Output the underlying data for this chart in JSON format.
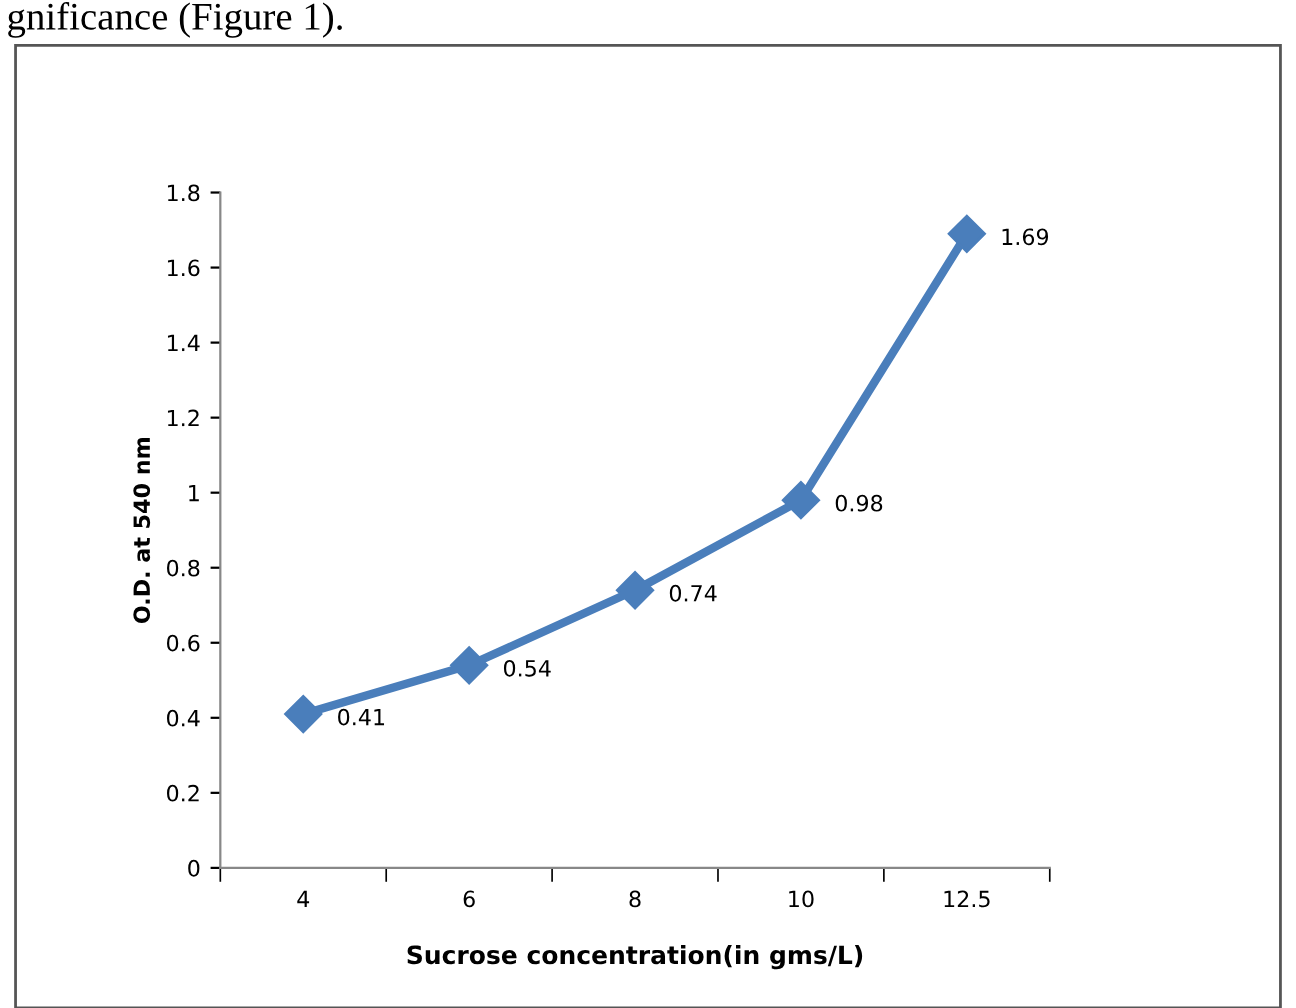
{
  "chart_data": {
    "type": "line",
    "xlabel": "Sucrose concentration(in gms/L)",
    "ylabel": "O.D. at 540 nm",
    "annotations": [
      "gnificance (Figure 1)."
    ],
    "categories": [
      "4",
      "6",
      "8",
      "10",
      "12.5"
    ],
    "series": [
      {
        "color": "#4a7ebb",
        "values": [
          0.41,
          0.54,
          0.74,
          0.98,
          1.69
        ]
      }
    ],
    "ylim": [
      0,
      1.8
    ],
    "yticks": [
      0,
      0.2,
      0.4,
      0.6,
      0.8,
      1,
      1.2,
      1.4,
      1.6,
      1.8
    ],
    "marker": "diamond",
    "line_style": "solid",
    "data_labels": true,
    "grid": false,
    "legend": false
  }
}
